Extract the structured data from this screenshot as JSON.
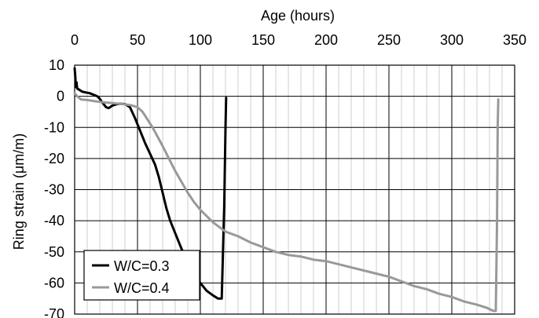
{
  "chart_data": {
    "type": "line",
    "title": "",
    "xlabel": "Age (hours)",
    "ylabel": "Ring strain (μm/m)",
    "xlim": [
      0,
      350
    ],
    "ylim": [
      -70,
      10
    ],
    "x_ticks": [
      0,
      50,
      100,
      150,
      200,
      250,
      300,
      350
    ],
    "y_ticks": [
      10,
      0,
      -10,
      -20,
      -30,
      -40,
      -50,
      -60,
      -70
    ],
    "x_axis_position": "top",
    "grid": true,
    "legend": "bottom-left",
    "series": [
      {
        "name": "W/C=0.3",
        "color": "#000000",
        "points": [
          [
            0,
            9
          ],
          [
            0.5,
            6.5
          ],
          [
            1,
            3
          ],
          [
            1.5,
            4.5
          ],
          [
            2,
            2.5
          ],
          [
            4,
            2
          ],
          [
            6,
            1.5
          ],
          [
            8,
            1.3
          ],
          [
            12,
            1
          ],
          [
            15,
            0.5
          ],
          [
            18,
            0
          ],
          [
            20,
            -0.8
          ],
          [
            22,
            -2
          ],
          [
            25,
            -3.5
          ],
          [
            27,
            -3.8
          ],
          [
            30,
            -3
          ],
          [
            33,
            -2.6
          ],
          [
            36,
            -2.4
          ],
          [
            40,
            -2.5
          ],
          [
            44,
            -3.5
          ],
          [
            48,
            -7
          ],
          [
            52,
            -11
          ],
          [
            56,
            -15
          ],
          [
            60,
            -18.5
          ],
          [
            64,
            -22
          ],
          [
            67,
            -26
          ],
          [
            70,
            -31
          ],
          [
            73,
            -36
          ],
          [
            76,
            -40
          ],
          [
            80,
            -44
          ],
          [
            85,
            -49
          ],
          [
            90,
            -53.5
          ],
          [
            95,
            -57
          ],
          [
            100,
            -60
          ],
          [
            105,
            -62.5
          ],
          [
            110,
            -64
          ],
          [
            114,
            -65
          ],
          [
            117,
            -65
          ],
          [
            119,
            -35
          ],
          [
            120,
            -10
          ],
          [
            120.5,
            -0.5
          ]
        ]
      },
      {
        "name": "W/C=0.4",
        "color": "#999999",
        "points": [
          [
            0,
            1
          ],
          [
            2,
            0
          ],
          [
            5,
            -1
          ],
          [
            10,
            -1.2
          ],
          [
            15,
            -1.5
          ],
          [
            20,
            -1.8
          ],
          [
            25,
            -2
          ],
          [
            30,
            -2.2
          ],
          [
            35,
            -2.4
          ],
          [
            40,
            -2.6
          ],
          [
            45,
            -2.9
          ],
          [
            50,
            -3.5
          ],
          [
            54,
            -5
          ],
          [
            58,
            -7.5
          ],
          [
            62,
            -10
          ],
          [
            66,
            -13
          ],
          [
            70,
            -16
          ],
          [
            75,
            -20
          ],
          [
            80,
            -24
          ],
          [
            85,
            -27.5
          ],
          [
            90,
            -31
          ],
          [
            95,
            -34
          ],
          [
            100,
            -36.5
          ],
          [
            105,
            -38.5
          ],
          [
            110,
            -40.5
          ],
          [
            115,
            -42
          ],
          [
            120,
            -43.5
          ],
          [
            130,
            -45
          ],
          [
            140,
            -47
          ],
          [
            150,
            -48.5
          ],
          [
            160,
            -50
          ],
          [
            170,
            -51
          ],
          [
            180,
            -51.5
          ],
          [
            190,
            -52.5
          ],
          [
            200,
            -53
          ],
          [
            210,
            -54
          ],
          [
            220,
            -55
          ],
          [
            230,
            -56
          ],
          [
            240,
            -57
          ],
          [
            250,
            -58
          ],
          [
            260,
            -59.5
          ],
          [
            270,
            -61
          ],
          [
            280,
            -62
          ],
          [
            290,
            -63.5
          ],
          [
            295,
            -64
          ],
          [
            300,
            -64.5
          ],
          [
            310,
            -66
          ],
          [
            320,
            -67
          ],
          [
            328,
            -68
          ],
          [
            333,
            -69
          ],
          [
            335,
            -69
          ],
          [
            336,
            -40
          ],
          [
            336.5,
            -10
          ],
          [
            337,
            -1
          ]
        ]
      }
    ]
  }
}
